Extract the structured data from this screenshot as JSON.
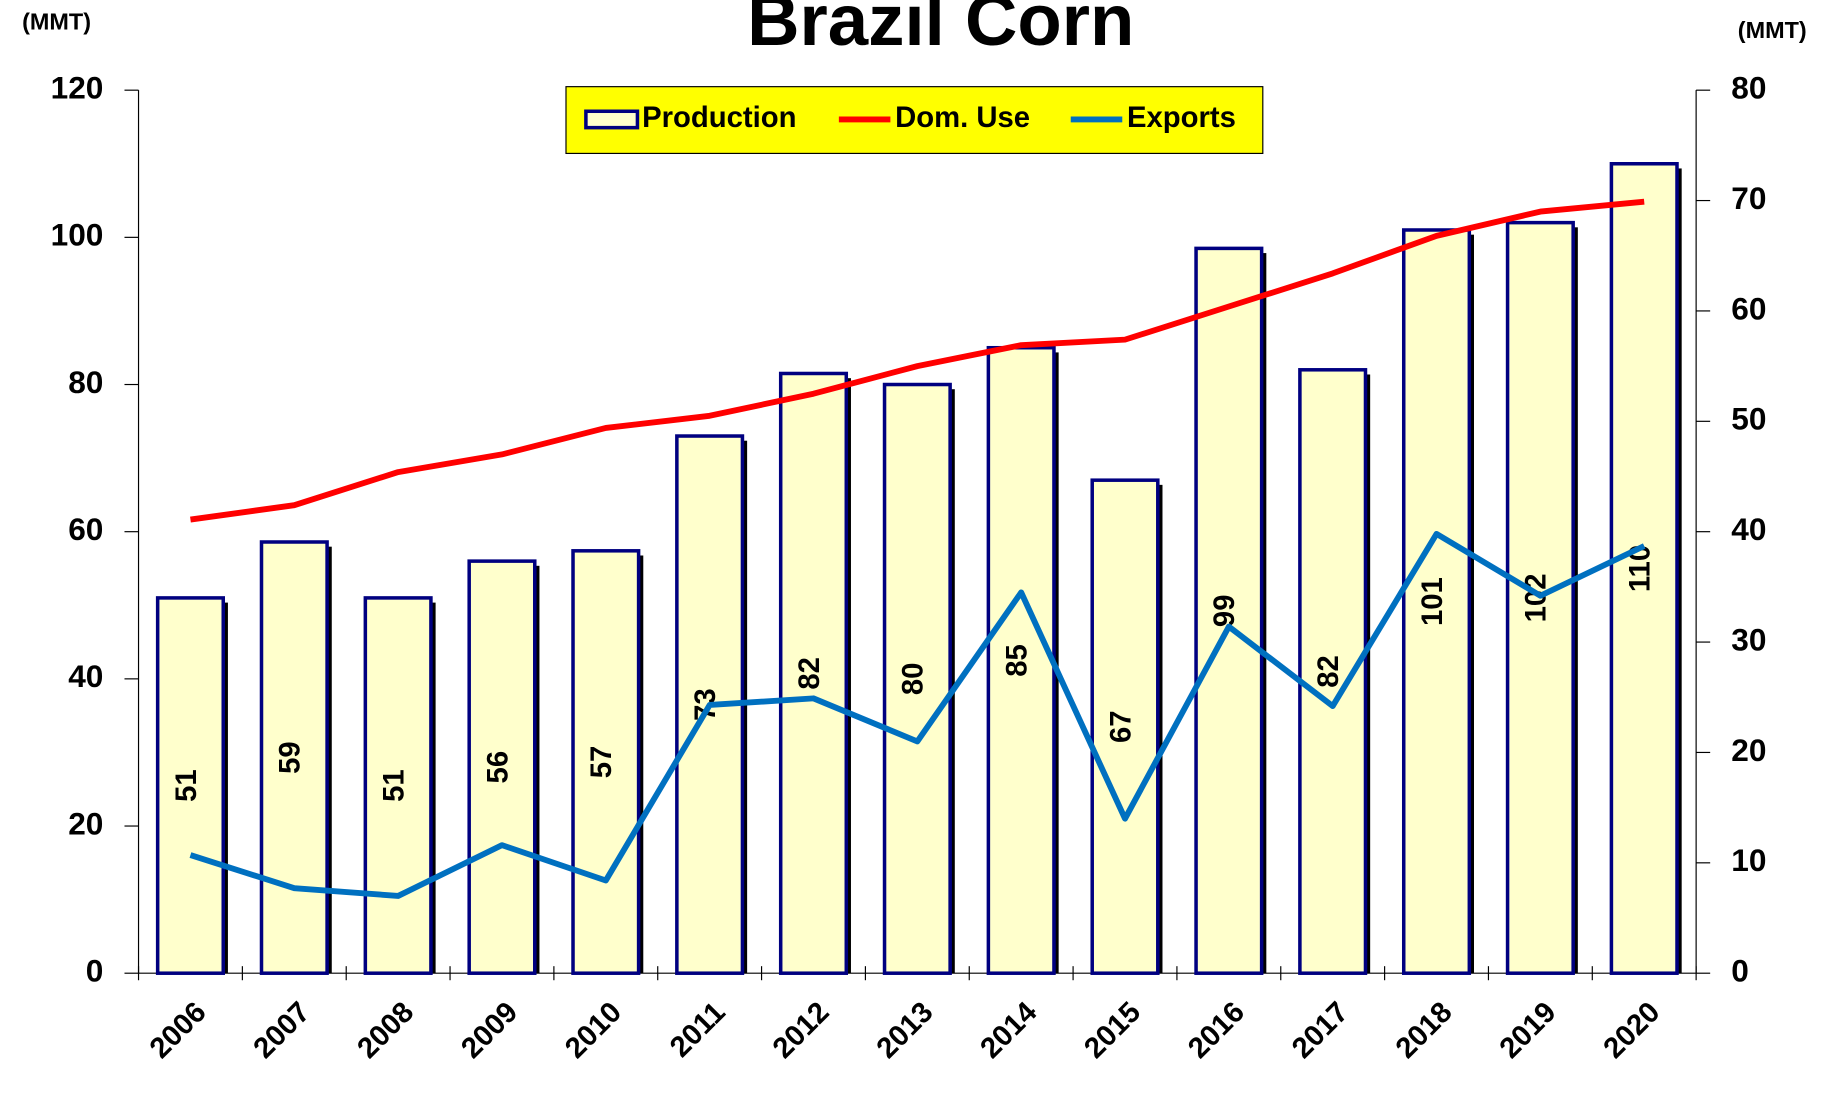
{
  "chart_data": {
    "type": "bar",
    "title": "Brazil Corn",
    "y_label": "(MMT)",
    "y2_label": "(MMT)",
    "categories": [
      "2006",
      "2007",
      "2008",
      "2009",
      "2010",
      "2011",
      "2012",
      "2013",
      "2014",
      "2015",
      "2016",
      "2017",
      "2018",
      "2019",
      "2020"
    ],
    "series": [
      {
        "name": "Production",
        "type": "bar",
        "color": "#ffffcc",
        "edge_color": "#000080",
        "values": [
          51,
          58.6,
          51,
          56,
          57.4,
          73,
          81.5,
          80,
          85,
          67,
          98.5,
          82,
          101,
          102,
          110
        ],
        "value_labels": [
          "51",
          "59",
          "51",
          "56",
          "57",
          "73",
          "82",
          "80",
          "85",
          "67",
          "99",
          "82",
          "101",
          "102",
          "110"
        ]
      },
      {
        "name": "Dom. Use",
        "type": "line",
        "axis": "y2",
        "color": "#ff0000",
        "values": [
          41.1,
          42.4,
          45.4,
          47,
          49.4,
          50.5,
          52.5,
          55,
          56.9,
          57.4,
          60.4,
          63.4,
          66.8,
          69,
          69.9
        ]
      },
      {
        "name": "Exports",
        "type": "line",
        "axis": "y2",
        "color": "#0070c0",
        "values": [
          10.7,
          7.7,
          7,
          11.6,
          8.4,
          24.3,
          24.9,
          21,
          34.5,
          14,
          31.4,
          24.2,
          39.8,
          34.2,
          38.7
        ]
      }
    ],
    "ylim": [
      0,
      120
    ],
    "yticks": [
      0,
      20,
      40,
      60,
      80,
      100,
      120
    ],
    "y2lim": [
      0,
      80
    ],
    "y2ticks": [
      0,
      10,
      20,
      30,
      40,
      50,
      60,
      70,
      80
    ],
    "legend_position": "top",
    "legend_color": "#ffff00"
  }
}
